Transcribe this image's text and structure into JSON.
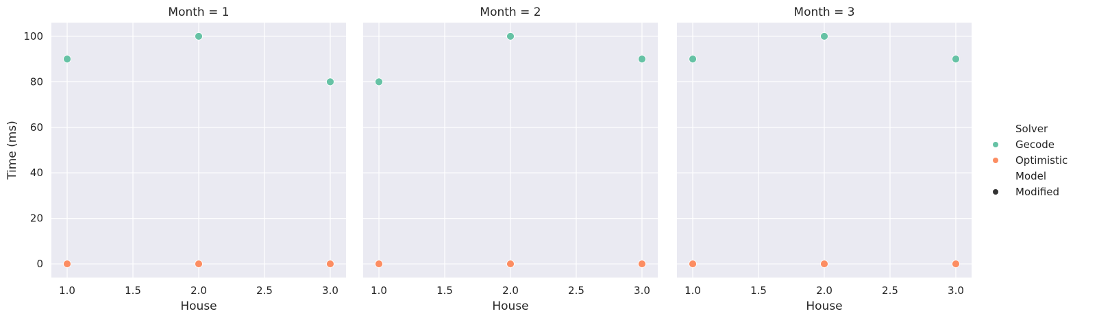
{
  "chart_data": {
    "type": "scatter",
    "facet_variable": "Month",
    "panels": [
      {
        "title": "Month = 1",
        "points": [
          {
            "x": 1.0,
            "y": 90,
            "solver": "Gecode"
          },
          {
            "x": 2.0,
            "y": 100,
            "solver": "Gecode"
          },
          {
            "x": 3.0,
            "y": 80,
            "solver": "Gecode"
          },
          {
            "x": 1.0,
            "y": 0,
            "solver": "Optimistic"
          },
          {
            "x": 2.0,
            "y": 0,
            "solver": "Optimistic"
          },
          {
            "x": 3.0,
            "y": 0,
            "solver": "Optimistic"
          }
        ]
      },
      {
        "title": "Month = 2",
        "points": [
          {
            "x": 1.0,
            "y": 80,
            "solver": "Gecode"
          },
          {
            "x": 2.0,
            "y": 100,
            "solver": "Gecode"
          },
          {
            "x": 3.0,
            "y": 90,
            "solver": "Gecode"
          },
          {
            "x": 1.0,
            "y": 0,
            "solver": "Optimistic"
          },
          {
            "x": 2.0,
            "y": 0,
            "solver": "Optimistic"
          },
          {
            "x": 3.0,
            "y": 0,
            "solver": "Optimistic"
          }
        ]
      },
      {
        "title": "Month = 3",
        "points": [
          {
            "x": 1.0,
            "y": 90,
            "solver": "Gecode"
          },
          {
            "x": 2.0,
            "y": 100,
            "solver": "Gecode"
          },
          {
            "x": 3.0,
            "y": 90,
            "solver": "Gecode"
          },
          {
            "x": 1.0,
            "y": 0,
            "solver": "Optimistic"
          },
          {
            "x": 2.0,
            "y": 0,
            "solver": "Optimistic"
          },
          {
            "x": 3.0,
            "y": 0,
            "solver": "Optimistic"
          }
        ]
      }
    ],
    "xlabel": "House",
    "ylabel": "Time (ms)",
    "xlim": [
      0.88,
      3.12
    ],
    "ylim": [
      -6,
      106
    ],
    "xticks": [
      "1.0",
      "1.5",
      "2.0",
      "2.5",
      "3.0"
    ],
    "yticks": [
      "0",
      "20",
      "40",
      "60",
      "80",
      "100"
    ],
    "grid": true,
    "legend_position": "right",
    "legend": {
      "hue_title": "Solver",
      "series": [
        {
          "name": "Gecode",
          "color": "#66c2a5"
        },
        {
          "name": "Optimistic",
          "color": "#fc8d62"
        }
      ],
      "style_title": "Model",
      "styles": [
        {
          "name": "Modified",
          "color": "#333333"
        }
      ]
    },
    "background_color": "#eaeaf2",
    "grid_color": "#ffffff"
  }
}
